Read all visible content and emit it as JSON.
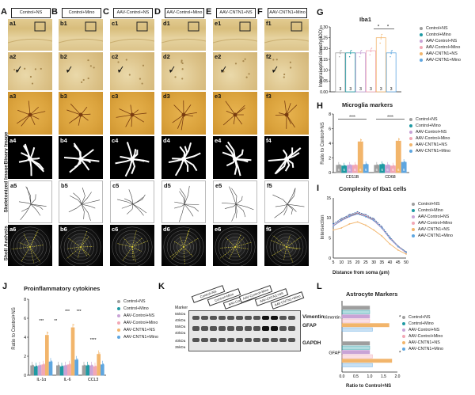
{
  "panel_letters": {
    "A": "A",
    "B": "B",
    "C": "C",
    "D": "D",
    "E": "E",
    "F": "F",
    "G": "G",
    "H": "H",
    "I": "I",
    "J": "J",
    "K": "K",
    "L": "L"
  },
  "column_headers": [
    "Control+NS",
    "Control+Mino",
    "AAV-Control+NS",
    "AAV-Control+Mino",
    "AAV-CNTN1+NS",
    "AAV-CNTN1+Mino"
  ],
  "tile_labels": [
    [
      "a1",
      "b1",
      "c1",
      "d1",
      "e1",
      "f1"
    ],
    [
      "a2",
      "b2",
      "c2",
      "d2",
      "e2",
      "f2"
    ],
    [
      "a3",
      "b3",
      "c3",
      "d3",
      "e3",
      "f3"
    ],
    [
      "a4",
      "b4",
      "c4",
      "d4",
      "e4",
      "f4"
    ],
    [
      "a5",
      "b5",
      "c5",
      "d5",
      "e5",
      "f5"
    ],
    [
      "a6",
      "b6",
      "c6",
      "d6",
      "e6",
      "f6"
    ]
  ],
  "row_labels": {
    "binary": "Binary Image",
    "skeleton": "Skeletonized Image",
    "sholl": "Sholl Analysis"
  },
  "legend_groups": [
    "Control+NS",
    "Control+Mino",
    "AAV-Control+NS",
    "AAV-Control+Mino",
    "AAV-CNTN1+NS",
    "AAV-CNTN1+Mino"
  ],
  "colors": {
    "c1": "#9e9e9e",
    "c2": "#1f9aa3",
    "c3": "#c9a3d6",
    "c4": "#f2a7b5",
    "c5": "#f2b56b",
    "c6": "#5ea6e0"
  },
  "chart_data": [
    {
      "id": "G",
      "type": "bar",
      "title": "Iba1",
      "ylabel": "Integral optical density(IOD)",
      "categories": [
        "Control+NS",
        "Control+Mino",
        "AAV-Control+NS",
        "AAV-Control+Mino",
        "AAV-CNTN1+NS",
        "AAV-CNTN1+Mino"
      ],
      "values": [
        0.18,
        0.18,
        0.18,
        0.19,
        0.25,
        0.18
      ],
      "ylim": [
        0.0,
        0.3
      ],
      "yticks": [
        "0.00",
        "0.05",
        "0.10",
        "0.15",
        "0.20",
        "0.25",
        "0.30"
      ],
      "n_labels": [
        "3",
        "3",
        "3",
        "3",
        "3",
        "3"
      ],
      "significance": [
        "*",
        "*"
      ]
    },
    {
      "id": "H",
      "type": "bar",
      "title": "Microglia markers",
      "ylabel": "Ratio to Control+NS",
      "categories": [
        "CD11B",
        "CD68"
      ],
      "series": [
        {
          "name": "Control+NS",
          "values": [
            1.0,
            1.0
          ]
        },
        {
          "name": "Control+Mino",
          "values": [
            0.9,
            1.1
          ]
        },
        {
          "name": "AAV-Control+NS",
          "values": [
            1.0,
            1.0
          ]
        },
        {
          "name": "AAV-Control+Mino",
          "values": [
            1.0,
            0.9
          ]
        },
        {
          "name": "AAV-CNTN1+NS",
          "values": [
            4.2,
            4.3
          ]
        },
        {
          "name": "AAV-CNTN1+Mino",
          "values": [
            1.1,
            1.4
          ]
        }
      ],
      "ylim": [
        0,
        8
      ],
      "yticks": [
        "0",
        "2",
        "4",
        "6",
        "8"
      ],
      "n_labels": [
        "6",
        "6",
        "6",
        "6",
        "6",
        "6"
      ],
      "significance": [
        "****",
        "****"
      ]
    },
    {
      "id": "I",
      "type": "line",
      "title": "Complexity of Iba1 cells",
      "xlabel": "Distance from soma (µm)",
      "ylabel": "Intersection",
      "x": [
        5,
        10,
        15,
        20,
        25,
        30,
        35,
        40,
        45,
        50
      ],
      "xticks": [
        "5",
        "10",
        "15",
        "20",
        "25",
        "30",
        "35",
        "40",
        "45",
        "50"
      ],
      "ylim": [
        0,
        15
      ],
      "yticks": [
        "0",
        "5",
        "10",
        "15"
      ],
      "series": [
        {
          "name": "Control+NS",
          "values": [
            8,
            9.5,
            10.5,
            11.2,
            10.5,
            9.5,
            7.5,
            5,
            3,
            1.5
          ]
        },
        {
          "name": "Control+Mino",
          "values": [
            8.5,
            9.8,
            10.8,
            11.5,
            10.8,
            9.8,
            7.8,
            5.2,
            3,
            1.5
          ]
        },
        {
          "name": "AAV-Control+NS",
          "values": [
            8,
            9.3,
            10.3,
            11,
            10.4,
            9.3,
            7.4,
            4.8,
            2.8,
            1.3
          ]
        },
        {
          "name": "AAV-Control+Mino",
          "values": [
            8.2,
            9.6,
            10.6,
            11.3,
            10.6,
            9.6,
            7.6,
            5,
            3,
            1.4
          ]
        },
        {
          "name": "AAV-CNTN1+NS",
          "values": [
            7,
            7.5,
            8.5,
            9,
            8.2,
            7,
            5.5,
            3.5,
            2,
            1
          ]
        },
        {
          "name": "AAV-CNTN1+Mino",
          "values": [
            8,
            9.4,
            10.4,
            11,
            10.3,
            9.4,
            7.5,
            4.9,
            2.9,
            1.4
          ]
        }
      ]
    },
    {
      "id": "J",
      "type": "bar",
      "title": "Proinflammatory cytokines",
      "ylabel": "Ratio to Control+NS",
      "categories": [
        "IL-1α",
        "IL-6",
        "CCL3"
      ],
      "series": [
        {
          "name": "Control+NS",
          "values": [
            1.0,
            1.0,
            1.0
          ]
        },
        {
          "name": "Control+Mino",
          "values": [
            0.9,
            0.9,
            1.0
          ]
        },
        {
          "name": "AAV-Control+NS",
          "values": [
            1.0,
            1.0,
            1.0
          ]
        },
        {
          "name": "AAV-Control+Mino",
          "values": [
            1.1,
            1.1,
            0.9
          ]
        },
        {
          "name": "AAV-CNTN1+NS",
          "values": [
            4.2,
            5.0,
            2.2
          ]
        },
        {
          "name": "AAV-CNTN1+Mino",
          "values": [
            1.4,
            1.6,
            1.1
          ]
        }
      ],
      "ylim": [
        0,
        8
      ],
      "yticks": [
        "0",
        "2",
        "4",
        "6",
        "8"
      ],
      "significance": [
        "***",
        "**",
        "***",
        "***",
        "****"
      ]
    },
    {
      "id": "L",
      "type": "bar",
      "title": "Astrocyte Markers",
      "xlabel": "Ratio to Control+NS",
      "categories": [
        "Vimentin",
        "GFAP"
      ],
      "series": [
        {
          "name": "Control+NS",
          "values": [
            1.0,
            1.0
          ]
        },
        {
          "name": "Control+Mino",
          "values": [
            1.0,
            1.0
          ]
        },
        {
          "name": "AAV-Control+NS",
          "values": [
            1.0,
            1.0
          ]
        },
        {
          "name": "AAV-Control+Mino",
          "values": [
            1.0,
            1.1
          ]
        },
        {
          "name": "AAV-CNTN1+NS",
          "values": [
            1.7,
            1.8
          ]
        },
        {
          "name": "AAV-CNTN1+Mino",
          "values": [
            1.1,
            1.1
          ]
        }
      ],
      "xlim": [
        0,
        2
      ],
      "xticks": [
        "0.0",
        "0.5",
        "1.0",
        "1.5",
        "2.0"
      ],
      "significance": [
        "*",
        "*"
      ]
    }
  ],
  "blot": {
    "marker_label": "Marker",
    "kda_labels": [
      "55kDa",
      "40kDa",
      "55kDa",
      "40kDa",
      "40kDa",
      "35kDa"
    ],
    "bands": [
      "Vimentin",
      "GFAP",
      "GAPDH"
    ],
    "lane_labels": [
      "Control+NS",
      "Control+Mino",
      "AAV-Control+NS",
      "AAV-Control+Mino",
      "AAV-CNTN1+NS",
      "AAV-CNTN1+Mino"
    ]
  }
}
